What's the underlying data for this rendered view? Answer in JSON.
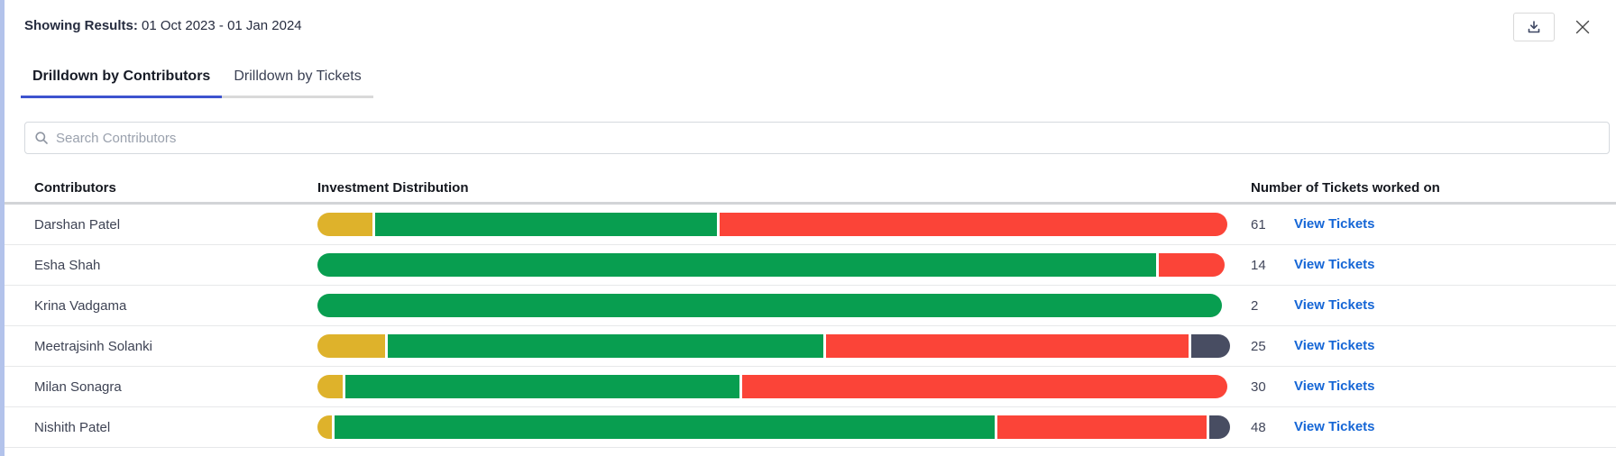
{
  "header": {
    "label": "Showing Results:",
    "value": "01 Oct 2023 - 01 Jan 2024"
  },
  "toolbar": {
    "download_icon": "download-icon",
    "close_icon": "close-icon"
  },
  "tabs": [
    {
      "label": "Drilldown by Contributors",
      "active": true
    },
    {
      "label": "Drilldown by Tickets",
      "active": false
    }
  ],
  "search": {
    "placeholder": "Search Contributors",
    "value": ""
  },
  "table": {
    "columns": [
      "Contributors",
      "Investment Distribution",
      "Number of Tickets worked on"
    ],
    "rows": [
      {
        "name": "Darshan Patel",
        "tickets": "61",
        "link_label": "View Tickets",
        "segments": [
          {
            "color": "amber",
            "pct": 6.1
          },
          {
            "color": "green",
            "pct": 37.8
          },
          {
            "color": "red",
            "pct": 56.1
          }
        ]
      },
      {
        "name": "Esha Shah",
        "tickets": "14",
        "link_label": "View Tickets",
        "segments": [
          {
            "color": "green",
            "pct": 92.7
          },
          {
            "color": "red",
            "pct": 7.3
          }
        ]
      },
      {
        "name": "Krina Vadgama",
        "tickets": "2",
        "link_label": "View Tickets",
        "segments": [
          {
            "color": "green",
            "pct": 100
          }
        ]
      },
      {
        "name": "Meetrajsinh Solanki",
        "tickets": "25",
        "link_label": "View Tickets",
        "segments": [
          {
            "color": "amber",
            "pct": 7.5
          },
          {
            "color": "green",
            "pct": 48.1
          },
          {
            "color": "red",
            "pct": 40.1
          },
          {
            "color": "slate",
            "pct": 4.3
          }
        ]
      },
      {
        "name": "Milan Sonagra",
        "tickets": "30",
        "link_label": "View Tickets",
        "segments": [
          {
            "color": "amber",
            "pct": 2.8
          },
          {
            "color": "green",
            "pct": 43.6
          },
          {
            "color": "red",
            "pct": 53.6
          }
        ]
      },
      {
        "name": "Nishith Patel",
        "tickets": "48",
        "link_label": "View Tickets",
        "segments": [
          {
            "color": "amber",
            "pct": 1.6
          },
          {
            "color": "green",
            "pct": 73.0
          },
          {
            "color": "red",
            "pct": 23.1
          },
          {
            "color": "slate",
            "pct": 2.3
          }
        ]
      }
    ]
  },
  "colors": {
    "amber": "#deb22b",
    "green": "#089e50",
    "red": "#fb4438",
    "slate": "#484d62",
    "link_blue": "#1566d6",
    "tab_active_underline": "#3d53cf",
    "left_strip": "#b3c3eb"
  }
}
